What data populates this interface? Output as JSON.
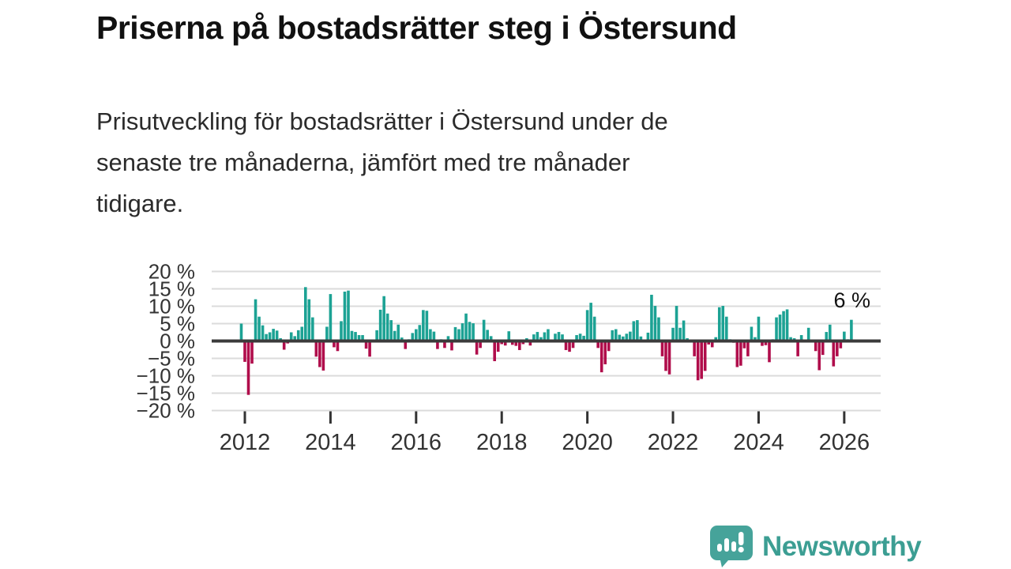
{
  "header": {
    "title": "Priserna på bostadsrätter steg i Östersund",
    "subtitle": "Prisutveckling för bostadsrätter i Östersund under de\nsenaste tre månaderna, jämfört med tre månader\ntidigare."
  },
  "chart_data": {
    "type": "bar",
    "title": "Priserna på bostadsrätter steg i Östersund",
    "unit": "%",
    "frequency": "monthly",
    "start": "2011-12",
    "end": "2026-03",
    "ylim": [
      -20,
      20
    ],
    "grid": "horizontal",
    "ytick_values": [
      20,
      15,
      10,
      5,
      0,
      -5,
      -10,
      -15,
      -20
    ],
    "ytick_labels": [
      "20 %",
      "15 %",
      "10 %",
      "5 %",
      "0 %",
      "−5 %",
      "−10 %",
      "−15 %",
      "−20 %"
    ],
    "xticks": [
      2012,
      2014,
      2016,
      2018,
      2020,
      2022,
      2024,
      2026
    ],
    "xtick_labels": [
      "2012",
      "2014",
      "2016",
      "2018",
      "2020",
      "2022",
      "2024",
      "2026"
    ],
    "annotation": {
      "text": "6 %",
      "value": 6.1
    },
    "colors": {
      "positive": "#1ca294",
      "negative": "#b00d4b",
      "zero_line": "#3b3b3b",
      "gridline": "#dbdbdb",
      "axis_text": "#333333",
      "annotation_text": "#111111"
    },
    "values": [
      5.0,
      -6.0,
      -15.5,
      -6.5,
      12.0,
      7.0,
      4.5,
      2.0,
      2.5,
      3.5,
      3.0,
      0.8,
      -2.5,
      -0.7,
      2.5,
      1.4,
      3.1,
      4.1,
      15.5,
      12.0,
      6.8,
      -4.5,
      -7.5,
      -8.5,
      4.1,
      13.5,
      -1.8,
      -2.9,
      5.7,
      14.2,
      14.5,
      2.9,
      2.6,
      1.7,
      1.7,
      -2.2,
      -4.5,
      0.0,
      3.1,
      9.0,
      12.9,
      7.9,
      6.0,
      2.9,
      4.7,
      1.0,
      -2.3,
      0.5,
      2.3,
      3.4,
      4.6,
      8.9,
      8.7,
      3.4,
      2.7,
      -2.3,
      0.5,
      -2.0,
      1.4,
      -2.7,
      4.0,
      3.4,
      5.1,
      7.9,
      5.5,
      5.1,
      -3.9,
      -2.0,
      6.1,
      3.2,
      1.4,
      -5.8,
      -3.1,
      -0.9,
      -1.3,
      2.8,
      -1.1,
      -1.4,
      -2.6,
      -0.9,
      0.8,
      -1.3,
      1.9,
      2.6,
      1.1,
      2.5,
      3.4,
      0.3,
      2.1,
      2.6,
      1.9,
      -2.6,
      -3.1,
      -2.0,
      1.7,
      2.1,
      1.5,
      8.9,
      11.0,
      7.0,
      -2.0,
      -9.0,
      -6.7,
      -2.9,
      3.1,
      3.4,
      1.8,
      1.3,
      2.1,
      2.7,
      5.7,
      6.0,
      1.3,
      0.3,
      2.4,
      13.3,
      10.1,
      6.8,
      -4.4,
      -8.6,
      -9.6,
      3.8,
      10.1,
      3.8,
      5.9,
      0.8,
      0.3,
      -4.4,
      -11.3,
      -10.9,
      -8.6,
      -1.0,
      -1.8,
      1.1,
      9.7,
      10.1,
      7.0,
      0.5,
      -0.5,
      -7.5,
      -7.1,
      -2.1,
      -4.4,
      4.1,
      1.1,
      7.0,
      -1.4,
      -1.2,
      -6.1,
      0.5,
      6.8,
      7.6,
      8.6,
      9.1,
      1.1,
      0.8,
      -4.4,
      1.7,
      0.0,
      3.8,
      0.0,
      -2.9,
      -8.4,
      -4.0,
      2.6,
      4.7,
      -7.3,
      -4.4,
      -2.1,
      2.7,
      0.5,
      6.1
    ]
  },
  "footer": {
    "brand": "Newsworthy",
    "logo_color": "#3c9e93",
    "icon_color": "#46a39a"
  }
}
